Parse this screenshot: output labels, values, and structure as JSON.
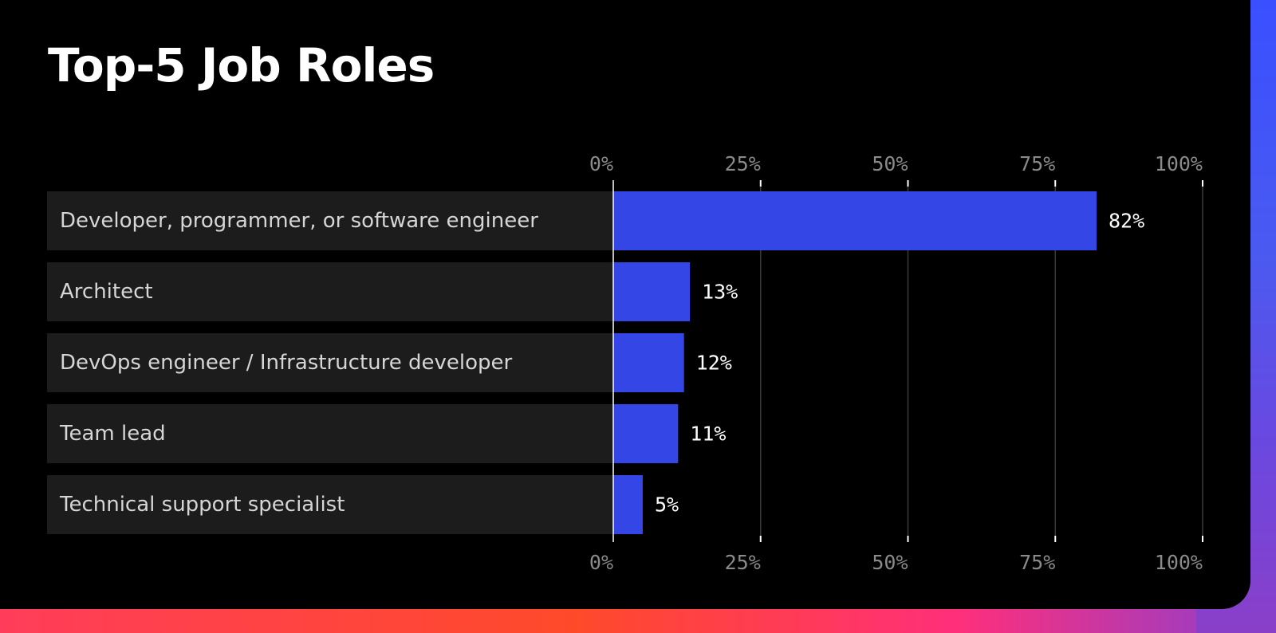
{
  "chart_data": {
    "type": "bar",
    "orientation": "horizontal",
    "title": "Top-5 Job Roles",
    "categories": [
      "Developer, programmer, or software engineer",
      "Architect",
      "DevOps engineer / Infrastructure developer",
      "Team lead",
      "Technical support specialist"
    ],
    "values": [
      82,
      13,
      12,
      11,
      5
    ],
    "value_labels": [
      "82%",
      "13%",
      "12%",
      "11%",
      "5%"
    ],
    "xlim": [
      0,
      100
    ],
    "ticks": [
      0,
      25,
      50,
      75,
      100
    ],
    "tick_labels": [
      "0%",
      "25%",
      "50%",
      "75%",
      "100%"
    ],
    "axis_labels_position": "top-and-bottom",
    "grid": true,
    "xlabel": "",
    "ylabel": "",
    "colors": {
      "bar": "#3446e6",
      "label_band": "#1c1c1c",
      "background": "#000000",
      "grid": "#3a3a3a"
    }
  }
}
